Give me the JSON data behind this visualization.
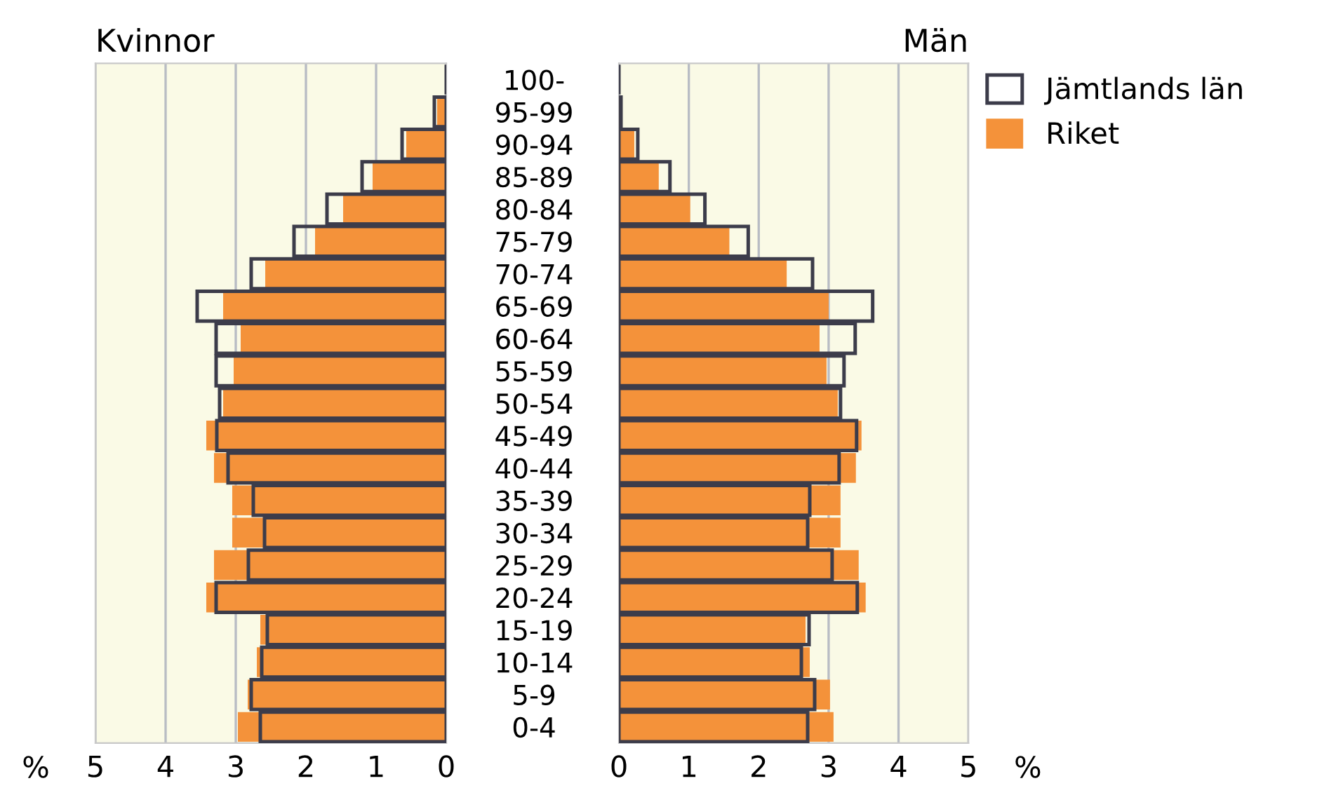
{
  "chart_data": [
    {
      "type": "bar",
      "orientation": "horizontal",
      "title": "Kvinnor",
      "xlabel": "%",
      "categories": [
        "100-",
        "95-99",
        "90-94",
        "85-89",
        "80-84",
        "75-79",
        "70-74",
        "65-69",
        "60-64",
        "55-59",
        "50-54",
        "45-49",
        "40-44",
        "35-39",
        "30-34",
        "25-29",
        "20-24",
        "15-19",
        "10-14",
        "5-9",
        "0-4"
      ],
      "series": [
        {
          "color": "#3c3c4a",
          "values": [
            0,
            0.17,
            0.63,
            1.2,
            1.7,
            2.17,
            2.78,
            3.55,
            3.28,
            3.28,
            3.23,
            3.27,
            3.11,
            2.75,
            2.59,
            2.82,
            3.28,
            2.55,
            2.63,
            2.78,
            2.65
          ]
        },
        {
          "color": "#f4923a",
          "values": [
            0,
            0.13,
            0.57,
            1.05,
            1.47,
            1.87,
            2.58,
            3.18,
            2.93,
            3.03,
            3.18,
            3.42,
            3.31,
            3.05,
            3.05,
            3.31,
            3.42,
            2.65,
            2.7,
            2.83,
            2.97
          ]
        }
      ],
      "xlim": [
        5,
        0
      ],
      "xticks": [
        5,
        4,
        3,
        2,
        1,
        0
      ],
      "grid": "x",
      "legend": false
    },
    {
      "type": "bar",
      "orientation": "horizontal",
      "title": "Män",
      "xlabel": "%",
      "categories": [
        null,
        null,
        null,
        null,
        null,
        null,
        null,
        null,
        null,
        null,
        null,
        null,
        null,
        null,
        null,
        null,
        null,
        null,
        null,
        null,
        null
      ],
      "series": [
        {
          "name": "Jämtlands län",
          "color": "#3c3c4a",
          "values": [
            0,
            0.03,
            0.27,
            0.73,
            1.23,
            1.85,
            2.77,
            3.63,
            3.38,
            3.22,
            3.17,
            3.4,
            3.15,
            2.73,
            2.7,
            3.05,
            3.41,
            2.72,
            2.61,
            2.8,
            2.7
          ]
        },
        {
          "name": "Riket",
          "color": "#f4923a",
          "values": [
            0,
            0.02,
            0.22,
            0.57,
            1.02,
            1.58,
            2.4,
            3.0,
            2.87,
            2.97,
            3.13,
            3.47,
            3.39,
            3.17,
            3.17,
            3.43,
            3.53,
            2.67,
            2.73,
            3.02,
            3.07
          ]
        }
      ],
      "xlim": [
        0,
        5
      ],
      "xticks": [
        0,
        1,
        2,
        3,
        4,
        5
      ],
      "grid": "x",
      "legend": "top right",
      "tick_labels": "x"
    }
  ]
}
